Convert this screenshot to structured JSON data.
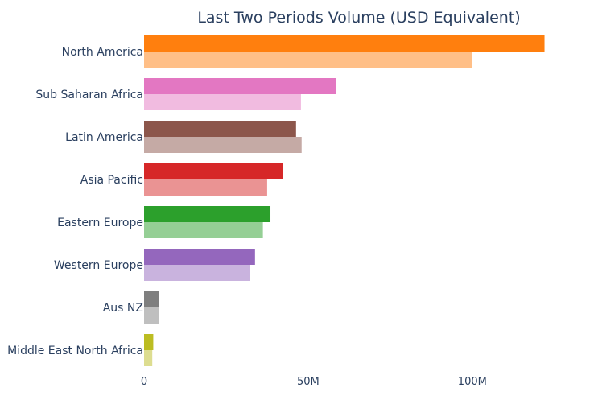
{
  "chart_data": {
    "type": "bar",
    "orientation": "horizontal",
    "title": "Last Two Periods Volume (USD Equivalent)",
    "xlabel": "",
    "ylabel": "",
    "categories": [
      "North America",
      "Sub Saharan Africa",
      "Latin America",
      "Asia Pacific",
      "Eastern Europe",
      "Western Europe",
      "Aus NZ",
      "Middle East North Africa"
    ],
    "series": [
      {
        "values": [
          122,
          58.5,
          46.3,
          42.2,
          38.5,
          33.8,
          4.6,
          2.8
        ]
      },
      {
        "values": [
          100,
          47.8,
          48.0,
          37.5,
          36.2,
          32.3,
          4.6,
          2.5
        ]
      }
    ],
    "colors": [
      [
        "#ff7f0e",
        "#ffbf87"
      ],
      [
        "#e377c2",
        "#f1bbe0"
      ],
      [
        "#8c564b",
        "#c5aaa5"
      ],
      [
        "#d62728",
        "#ea9393"
      ],
      [
        "#2ca02c",
        "#95cf95"
      ],
      [
        "#9467bd",
        "#c9b3de"
      ],
      [
        "#7f7f7f",
        "#bfbfbf"
      ],
      [
        "#bcbd22",
        "#dddd90"
      ]
    ],
    "xlim": [
      0,
      128
    ],
    "xticks": [
      0,
      50,
      100
    ],
    "xtick_labels": [
      "0",
      "50M",
      "100M"
    ],
    "grid": false,
    "legend": "none"
  }
}
